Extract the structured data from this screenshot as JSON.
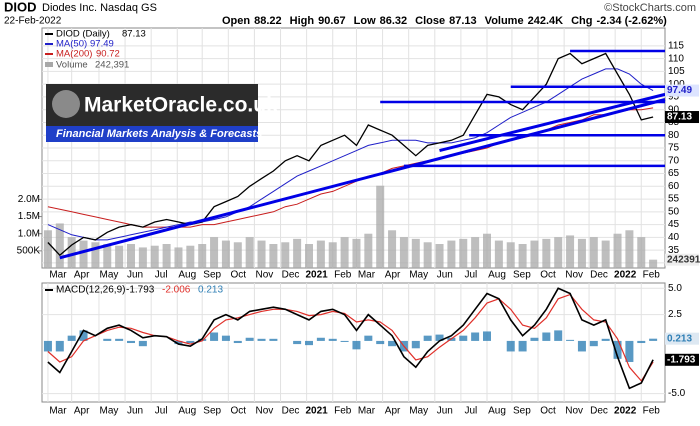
{
  "chart_data": {
    "type": "stock",
    "title": "DIOD",
    "subtitle": "Diodes Inc. Nasdaq GS",
    "date": "22-Feb-2022",
    "quote": [
      {
        "label": "Open",
        "value": "88.22"
      },
      {
        "label": "High",
        "value": "90.67"
      },
      {
        "label": "Low",
        "value": "86.32"
      },
      {
        "label": "Close",
        "value": "87.13"
      },
      {
        "label": "Volume",
        "value": "242.4K"
      },
      {
        "label": "Chg",
        "value": "-2.34 (-2.62%)"
      }
    ],
    "credit": "©StockCharts.com",
    "watermark": {
      "title": "MarketOracle.co.uk",
      "tagline": "Financial Markets Analysis & Forecasts"
    },
    "xlim": [
      -0.5,
      52
    ],
    "xticks": [
      {
        "value": 0,
        "label": "Mar"
      },
      {
        "value": 2,
        "label": "Apr"
      },
      {
        "value": 4.3,
        "label": "May"
      },
      {
        "value": 6.5,
        "label": "Jun"
      },
      {
        "value": 8.7,
        "label": "Jul"
      },
      {
        "value": 10.9,
        "label": "Aug"
      },
      {
        "value": 13,
        "label": "Sep"
      },
      {
        "value": 15.2,
        "label": "Oct"
      },
      {
        "value": 17.4,
        "label": "Nov"
      },
      {
        "value": 19.6,
        "label": "Dec"
      },
      {
        "value": 21.8,
        "label": "2021"
      },
      {
        "value": 24,
        "label": "Feb"
      },
      {
        "value": 26,
        "label": "Mar"
      },
      {
        "value": 28.2,
        "label": "Apr"
      },
      {
        "value": 30.4,
        "label": "May"
      },
      {
        "value": 32.6,
        "label": "Jun"
      },
      {
        "value": 34.8,
        "label": "Jul"
      },
      {
        "value": 37,
        "label": "Aug"
      },
      {
        "value": 39.1,
        "label": "Sep"
      },
      {
        "value": 41.3,
        "label": "Oct"
      },
      {
        "value": 43.5,
        "label": "Nov"
      },
      {
        "value": 45.6,
        "label": "Dec"
      },
      {
        "value": 47.8,
        "label": "2022"
      },
      {
        "value": 50,
        "label": "Feb"
      }
    ],
    "ylim": [
      28,
      122
    ],
    "yticks": [
      30,
      35,
      40,
      45,
      50,
      55,
      60,
      65,
      70,
      75,
      80,
      85,
      90,
      95,
      100,
      105,
      110,
      115
    ],
    "grid": true,
    "series": [
      {
        "name": "DIOD (Daily)",
        "color": "#000000",
        "values": [
          38,
          33,
          37,
          40,
          39,
          42,
          44,
          45,
          44,
          46,
          47,
          46,
          45,
          46,
          52,
          54,
          56,
          60,
          63,
          66,
          70,
          72,
          70,
          76,
          78,
          80,
          76,
          84,
          82,
          80,
          76,
          72,
          76,
          77,
          78,
          80,
          88,
          96,
          95,
          92,
          90,
          95,
          100,
          110,
          112,
          108,
          110,
          112,
          104,
          96,
          86,
          87.13
        ]
      },
      {
        "name": "MA(50)",
        "color": "#1f1fc8",
        "values": [
          45,
          43,
          41,
          40,
          39,
          39,
          40,
          41,
          42,
          43,
          44,
          45,
          46,
          46,
          47,
          48,
          50,
          52,
          55,
          58,
          61,
          64,
          66,
          68,
          70,
          72,
          74,
          76,
          77,
          78,
          78,
          78,
          77,
          77,
          77,
          78,
          79,
          81,
          84,
          87,
          89,
          91,
          93,
          96,
          99,
          102,
          104,
          106,
          106,
          104,
          100,
          97.49
        ]
      },
      {
        "name": "MA(200)",
        "color": "#c81e1e",
        "values": [
          52,
          51,
          50,
          49,
          48,
          47,
          46,
          45,
          44,
          44,
          44,
          44,
          44,
          45,
          45,
          46,
          47,
          48,
          49,
          50,
          52,
          53,
          55,
          57,
          58,
          60,
          62,
          64,
          65,
          67,
          68,
          69,
          70,
          71,
          72,
          73,
          74,
          75,
          77,
          78,
          79,
          80,
          82,
          84,
          85,
          86,
          88,
          88,
          89,
          90,
          90,
          90.72
        ]
      }
    ],
    "volume": {
      "name": "Volume",
      "color": "#a8a8a8",
      "legend_label": "242,391",
      "ylim": [
        0,
        7000000
      ],
      "yticks": [
        {
          "value": 500000,
          "label": "500K"
        },
        {
          "value": 1000000,
          "label": "1.0M"
        },
        {
          "value": 1500000,
          "label": "1.5M"
        },
        {
          "value": 2000000,
          "label": "2.0M"
        }
      ],
      "values": [
        1100000,
        1300000,
        900000,
        800000,
        750000,
        700000,
        650000,
        700000,
        600000,
        650000,
        700000,
        600000,
        650000,
        700000,
        900000,
        800000,
        750000,
        900000,
        800000,
        700000,
        750000,
        850000,
        700000,
        800000,
        750000,
        900000,
        850000,
        1000000,
        2400000,
        1100000,
        900000,
        850000,
        750000,
        700000,
        800000,
        850000,
        900000,
        1000000,
        800000,
        750000,
        700000,
        800000,
        850000,
        900000,
        950000,
        850000,
        900000,
        800000,
        1000000,
        1100000,
        900000,
        242391
      ]
    },
    "macd": {
      "title": "MACD(12,26,9)",
      "ylim": [
        -5.8,
        5.5
      ],
      "yticks": [
        {
          "value": 5,
          "label": "5.0"
        },
        {
          "value": 2.5,
          "label": "2.5"
        },
        {
          "value": -5,
          "label": "-5.0"
        }
      ],
      "series": [
        {
          "name": "MACD",
          "color": "#000000",
          "values": [
            -2,
            -3,
            -1,
            1,
            0.5,
            1.2,
            1.5,
            1,
            0.3,
            0.5,
            0.4,
            -0.3,
            -0.5,
            0.2,
            2,
            2.5,
            2,
            2.8,
            3,
            3.2,
            3,
            2.5,
            2,
            2.8,
            3,
            2.5,
            1,
            2.5,
            1.5,
            0.5,
            -1.5,
            -2.5,
            -1,
            0,
            0.5,
            1.5,
            3,
            4.5,
            4,
            2,
            0.5,
            1.5,
            3,
            5,
            4.5,
            2,
            1.5,
            2,
            -1.5,
            -4.5,
            -4,
            -1.793
          ]
        },
        {
          "name": "Signal",
          "color": "#e0302a",
          "values": [
            -1,
            -2,
            -1.5,
            0,
            0.5,
            1,
            1.3,
            1.2,
            0.8,
            0.5,
            0.4,
            0,
            -0.3,
            0,
            1.2,
            2,
            2.2,
            2.5,
            2.8,
            3,
            3,
            2.8,
            2.4,
            2.5,
            2.8,
            2.6,
            1.8,
            2,
            1.8,
            1,
            -0.5,
            -1.8,
            -1.5,
            -0.6,
            0.2,
            1,
            2.2,
            3.6,
            4,
            3,
            1.5,
            1.2,
            2.2,
            4,
            4.4,
            3,
            2,
            1.8,
            0.2,
            -2.5,
            -3.8,
            -2.006
          ]
        }
      ],
      "histogram": {
        "name": "Histogram",
        "color": "#2f7fb5",
        "values": [
          -1,
          -1,
          0.5,
          1,
          0,
          0.2,
          0.2,
          -0.2,
          -0.5,
          0,
          0,
          -0.3,
          -0.2,
          0.2,
          0.8,
          0.5,
          -0.2,
          0.3,
          0.2,
          0.2,
          0,
          -0.3,
          -0.4,
          0.3,
          0.2,
          -0.1,
          -0.8,
          0.5,
          -0.3,
          -0.5,
          -1,
          -0.7,
          0.5,
          0.6,
          0.3,
          0.5,
          0.8,
          0.9,
          0,
          -1,
          -1,
          0.3,
          0.8,
          1,
          0.1,
          -1,
          -0.5,
          0.2,
          -1.7,
          -2,
          -0.2,
          0.213
        ]
      }
    },
    "annotations": {
      "color": "#0000e6",
      "hlines": [
        {
          "value": 113,
          "from": 44
        },
        {
          "value": 99,
          "from": 39
        },
        {
          "value": 93,
          "from": 28
        },
        {
          "value": 80,
          "from": 35.5
        },
        {
          "value": 68,
          "from": 30
        }
      ],
      "trendlines": [
        {
          "x": [
            1,
            52
          ],
          "y": [
            32,
            94
          ]
        },
        {
          "x": [
            33,
            52
          ],
          "y": [
            74,
            96
          ]
        }
      ]
    }
  }
}
